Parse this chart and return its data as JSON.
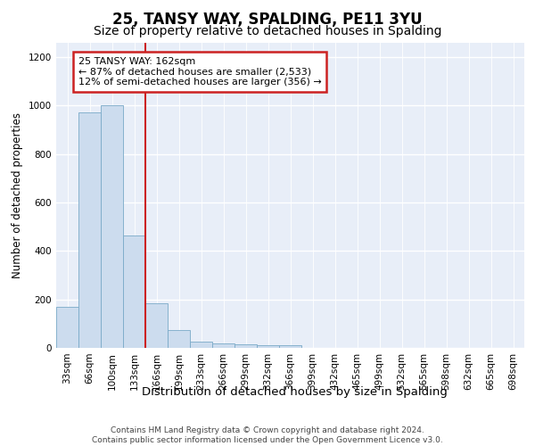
{
  "title1": "25, TANSY WAY, SPALDING, PE11 3YU",
  "title2": "Size of property relative to detached houses in Spalding",
  "xlabel": "Distribution of detached houses by size in Spalding",
  "ylabel": "Number of detached properties",
  "categories": [
    "33sqm",
    "66sqm",
    "100sqm",
    "133sqm",
    "166sqm",
    "199sqm",
    "233sqm",
    "266sqm",
    "299sqm",
    "332sqm",
    "366sqm",
    "399sqm",
    "432sqm",
    "465sqm",
    "499sqm",
    "532sqm",
    "565sqm",
    "598sqm",
    "632sqm",
    "665sqm",
    "698sqm"
  ],
  "values": [
    170,
    970,
    1000,
    465,
    185,
    72,
    25,
    20,
    15,
    10,
    12,
    0,
    0,
    0,
    0,
    0,
    0,
    0,
    0,
    0,
    0
  ],
  "bar_color": "#ccdcee",
  "bar_edge_color": "#7aaac8",
  "vline_x_index": 3,
  "vline_color": "#cc2222",
  "annotation_text": "25 TANSY WAY: 162sqm\n← 87% of detached houses are smaller (2,533)\n12% of semi-detached houses are larger (356) →",
  "annotation_box_facecolor": "#ffffff",
  "annotation_box_edgecolor": "#cc2222",
  "ylim": [
    0,
    1260
  ],
  "yticks": [
    0,
    200,
    400,
    600,
    800,
    1000,
    1200
  ],
  "bg_color": "#e8eef8",
  "grid_color": "#ffffff",
  "footer_text": "Contains HM Land Registry data © Crown copyright and database right 2024.\nContains public sector information licensed under the Open Government Licence v3.0.",
  "title1_fontsize": 12,
  "title2_fontsize": 10,
  "xlabel_fontsize": 9.5,
  "ylabel_fontsize": 8.5,
  "tick_fontsize": 7.5,
  "annot_fontsize": 8,
  "footer_fontsize": 6.5
}
